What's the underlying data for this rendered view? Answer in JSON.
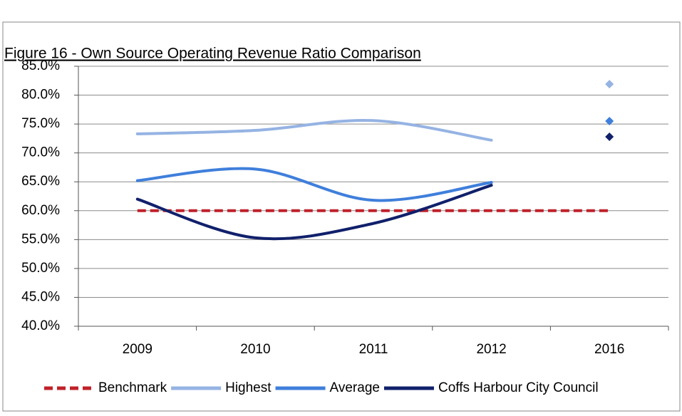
{
  "chart_data": {
    "type": "line",
    "title": "Figure 16 - Own Source Operating Revenue Ratio Comparison",
    "categories": [
      "2009",
      "2010",
      "2011",
      "2012",
      "2016"
    ],
    "series": [
      {
        "name": "Benchmark",
        "color": "#c0202a",
        "dashed": true,
        "values": [
          60,
          60,
          60,
          60,
          60
        ],
        "marker_values": [
          null,
          null,
          null,
          null,
          null
        ]
      },
      {
        "name": "Highest",
        "color": "#95b3e3",
        "dashed": false,
        "values": [
          73.3,
          73.9,
          75.6,
          72.2,
          null
        ],
        "marker_values": [
          null,
          null,
          null,
          null,
          81.9
        ]
      },
      {
        "name": "Average",
        "color": "#3f7fdb",
        "dashed": false,
        "values": [
          65.2,
          67.2,
          61.8,
          64.9,
          null
        ],
        "marker_values": [
          null,
          null,
          null,
          null,
          75.5
        ]
      },
      {
        "name": "Coffs Harbour City Council",
        "color": "#10206b",
        "dashed": false,
        "values": [
          62.0,
          55.3,
          57.8,
          64.4,
          null
        ],
        "marker_values": [
          null,
          null,
          null,
          null,
          72.8
        ]
      }
    ],
    "ylim": [
      40,
      85
    ],
    "yticks": [
      {
        "value": 40,
        "label": "40.0%"
      },
      {
        "value": 45,
        "label": "45.0%"
      },
      {
        "value": 50,
        "label": "50.0%"
      },
      {
        "value": 55,
        "label": "55.0%"
      },
      {
        "value": 60,
        "label": "60.0%"
      },
      {
        "value": 65,
        "label": "65.0%"
      },
      {
        "value": 70,
        "label": "70.0%"
      },
      {
        "value": 75,
        "label": "75.0%"
      },
      {
        "value": 80,
        "label": "80.0%"
      },
      {
        "value": 85,
        "label": "85.0%"
      }
    ],
    "grid": true
  }
}
